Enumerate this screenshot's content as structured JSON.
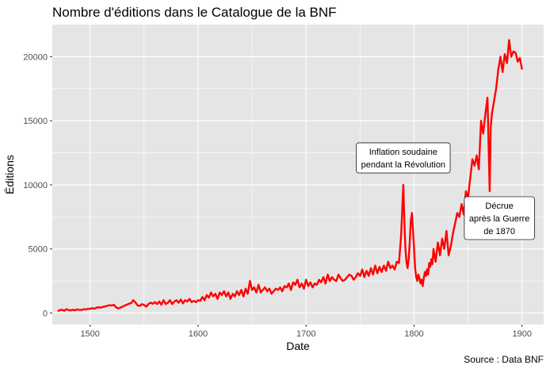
{
  "chart_data": {
    "type": "line",
    "title": "Nombre d'éditions dans le Catalogue de la BNF",
    "xlabel": "Date",
    "ylabel": "Éditions",
    "caption": "Source : Data BNF",
    "xlim": [
      1465,
      1920
    ],
    "ylim": [
      -900,
      22500
    ],
    "x_ticks": [
      1500,
      1600,
      1700,
      1800,
      1900
    ],
    "y_ticks": [
      0,
      5000,
      10000,
      15000,
      20000
    ],
    "x_tick_labels": [
      "1500",
      "1600",
      "1700",
      "1800",
      "1900"
    ],
    "y_tick_labels": [
      "0",
      "5000",
      "10000",
      "15000",
      "20000"
    ],
    "grid": true,
    "colors": {
      "panel": "#e5e5e5",
      "grid": "#ffffff",
      "line": "#ff0000"
    },
    "series": [
      {
        "color": "#ff0000",
        "points": [
          [
            1470,
            150
          ],
          [
            1472,
            220
          ],
          [
            1474,
            260
          ],
          [
            1476,
            180
          ],
          [
            1478,
            300
          ],
          [
            1480,
            230
          ],
          [
            1482,
            200
          ],
          [
            1484,
            260
          ],
          [
            1486,
            210
          ],
          [
            1488,
            280
          ],
          [
            1490,
            250
          ],
          [
            1492,
            230
          ],
          [
            1494,
            300
          ],
          [
            1496,
            270
          ],
          [
            1498,
            330
          ],
          [
            1500,
            320
          ],
          [
            1502,
            380
          ],
          [
            1504,
            340
          ],
          [
            1506,
            420
          ],
          [
            1508,
            450
          ],
          [
            1510,
            420
          ],
          [
            1512,
            480
          ],
          [
            1514,
            520
          ],
          [
            1516,
            560
          ],
          [
            1518,
            610
          ],
          [
            1520,
            580
          ],
          [
            1522,
            640
          ],
          [
            1524,
            450
          ],
          [
            1526,
            350
          ],
          [
            1528,
            420
          ],
          [
            1530,
            500
          ],
          [
            1532,
            580
          ],
          [
            1534,
            650
          ],
          [
            1536,
            720
          ],
          [
            1538,
            780
          ],
          [
            1540,
            1000
          ],
          [
            1542,
            820
          ],
          [
            1544,
            600
          ],
          [
            1546,
            550
          ],
          [
            1548,
            700
          ],
          [
            1550,
            620
          ],
          [
            1552,
            500
          ],
          [
            1554,
            700
          ],
          [
            1556,
            800
          ],
          [
            1558,
            720
          ],
          [
            1560,
            850
          ],
          [
            1562,
            700
          ],
          [
            1564,
            900
          ],
          [
            1566,
            650
          ],
          [
            1568,
            1000
          ],
          [
            1570,
            700
          ],
          [
            1572,
            800
          ],
          [
            1574,
            1000
          ],
          [
            1576,
            700
          ],
          [
            1578,
            900
          ],
          [
            1580,
            1000
          ],
          [
            1582,
            800
          ],
          [
            1584,
            1050
          ],
          [
            1586,
            750
          ],
          [
            1588,
            1000
          ],
          [
            1590,
            900
          ],
          [
            1592,
            1100
          ],
          [
            1594,
            850
          ],
          [
            1596,
            950
          ],
          [
            1598,
            850
          ],
          [
            1600,
            1000
          ],
          [
            1602,
            950
          ],
          [
            1604,
            1250
          ],
          [
            1606,
            1000
          ],
          [
            1608,
            1400
          ],
          [
            1610,
            1200
          ],
          [
            1612,
            1600
          ],
          [
            1614,
            1300
          ],
          [
            1616,
            1500
          ],
          [
            1618,
            1100
          ],
          [
            1620,
            1600
          ],
          [
            1622,
            1400
          ],
          [
            1624,
            1700
          ],
          [
            1626,
            1300
          ],
          [
            1628,
            1600
          ],
          [
            1630,
            1100
          ],
          [
            1632,
            1500
          ],
          [
            1634,
            1300
          ],
          [
            1636,
            1700
          ],
          [
            1638,
            1400
          ],
          [
            1640,
            1800
          ],
          [
            1642,
            1300
          ],
          [
            1644,
            1900
          ],
          [
            1646,
            1500
          ],
          [
            1648,
            2500
          ],
          [
            1650,
            1800
          ],
          [
            1652,
            2000
          ],
          [
            1654,
            1600
          ],
          [
            1656,
            2200
          ],
          [
            1658,
            1600
          ],
          [
            1660,
            1800
          ],
          [
            1662,
            2000
          ],
          [
            1664,
            1700
          ],
          [
            1666,
            1900
          ],
          [
            1668,
            1500
          ],
          [
            1670,
            1700
          ],
          [
            1672,
            1900
          ],
          [
            1674,
            1800
          ],
          [
            1676,
            2000
          ],
          [
            1678,
            1700
          ],
          [
            1680,
            2100
          ],
          [
            1682,
            2000
          ],
          [
            1684,
            2300
          ],
          [
            1686,
            1800
          ],
          [
            1688,
            2400
          ],
          [
            1690,
            2200
          ],
          [
            1692,
            2600
          ],
          [
            1694,
            2000
          ],
          [
            1696,
            2300
          ],
          [
            1698,
            1900
          ],
          [
            1700,
            2600
          ],
          [
            1702,
            2100
          ],
          [
            1704,
            2400
          ],
          [
            1706,
            2000
          ],
          [
            1708,
            2300
          ],
          [
            1710,
            2200
          ],
          [
            1712,
            2600
          ],
          [
            1714,
            2400
          ],
          [
            1716,
            2800
          ],
          [
            1718,
            2300
          ],
          [
            1720,
            3000
          ],
          [
            1722,
            2500
          ],
          [
            1724,
            2800
          ],
          [
            1726,
            2600
          ],
          [
            1728,
            2500
          ],
          [
            1730,
            3000
          ],
          [
            1732,
            2700
          ],
          [
            1734,
            2500
          ],
          [
            1736,
            2600
          ],
          [
            1738,
            2800
          ],
          [
            1740,
            3000
          ],
          [
            1742,
            2900
          ],
          [
            1744,
            2600
          ],
          [
            1746,
            2800
          ],
          [
            1748,
            3100
          ],
          [
            1750,
            2900
          ],
          [
            1752,
            3400
          ],
          [
            1754,
            2800
          ],
          [
            1756,
            3300
          ],
          [
            1758,
            2900
          ],
          [
            1760,
            3500
          ],
          [
            1762,
            3000
          ],
          [
            1764,
            3700
          ],
          [
            1766,
            3100
          ],
          [
            1768,
            3600
          ],
          [
            1770,
            3200
          ],
          [
            1772,
            3700
          ],
          [
            1774,
            3300
          ],
          [
            1776,
            4000
          ],
          [
            1778,
            3500
          ],
          [
            1780,
            3700
          ],
          [
            1782,
            3400
          ],
          [
            1784,
            4000
          ],
          [
            1786,
            3900
          ],
          [
            1788,
            6000
          ],
          [
            1790,
            10000
          ],
          [
            1791,
            7200
          ],
          [
            1792,
            5000
          ],
          [
            1793,
            4000
          ],
          [
            1794,
            3500
          ],
          [
            1795,
            4200
          ],
          [
            1796,
            5500
          ],
          [
            1797,
            7200
          ],
          [
            1798,
            7800
          ],
          [
            1799,
            6500
          ],
          [
            1800,
            5000
          ],
          [
            1801,
            3500
          ],
          [
            1802,
            2800
          ],
          [
            1803,
            2500
          ],
          [
            1804,
            3000
          ],
          [
            1805,
            2700
          ],
          [
            1806,
            2300
          ],
          [
            1807,
            2600
          ],
          [
            1808,
            2100
          ],
          [
            1809,
            2700
          ],
          [
            1810,
            3200
          ],
          [
            1811,
            2900
          ],
          [
            1812,
            3400
          ],
          [
            1813,
            3000
          ],
          [
            1814,
            3900
          ],
          [
            1815,
            3600
          ],
          [
            1816,
            4200
          ],
          [
            1817,
            3800
          ],
          [
            1818,
            5000
          ],
          [
            1820,
            4000
          ],
          [
            1822,
            5500
          ],
          [
            1824,
            4500
          ],
          [
            1826,
            5800
          ],
          [
            1828,
            5000
          ],
          [
            1830,
            6400
          ],
          [
            1832,
            4500
          ],
          [
            1834,
            5200
          ],
          [
            1836,
            6200
          ],
          [
            1838,
            7000
          ],
          [
            1840,
            7800
          ],
          [
            1842,
            7500
          ],
          [
            1844,
            8500
          ],
          [
            1846,
            7700
          ],
          [
            1848,
            9500
          ],
          [
            1850,
            9000
          ],
          [
            1852,
            10500
          ],
          [
            1854,
            12000
          ],
          [
            1856,
            11500
          ],
          [
            1858,
            12300
          ],
          [
            1860,
            11200
          ],
          [
            1862,
            15000
          ],
          [
            1864,
            14000
          ],
          [
            1866,
            15500
          ],
          [
            1868,
            16800
          ],
          [
            1870,
            9500
          ],
          [
            1871,
            14500
          ],
          [
            1872,
            15500
          ],
          [
            1874,
            16500
          ],
          [
            1876,
            17500
          ],
          [
            1878,
            19000
          ],
          [
            1880,
            20000
          ],
          [
            1882,
            18800
          ],
          [
            1884,
            20200
          ],
          [
            1886,
            19500
          ],
          [
            1888,
            21300
          ],
          [
            1890,
            20000
          ],
          [
            1892,
            20400
          ],
          [
            1894,
            20300
          ],
          [
            1896,
            19600
          ],
          [
            1898,
            19900
          ],
          [
            1900,
            19000
          ]
        ]
      }
    ],
    "annotations": [
      {
        "lines": [
          "Inflation soudaine",
          "pendant la Révolution"
        ],
        "x": 1790,
        "y": 12100
      },
      {
        "lines": [
          "Décrue",
          "après la Guerre",
          "de 1870"
        ],
        "x": 1879,
        "y": 7400
      }
    ]
  }
}
